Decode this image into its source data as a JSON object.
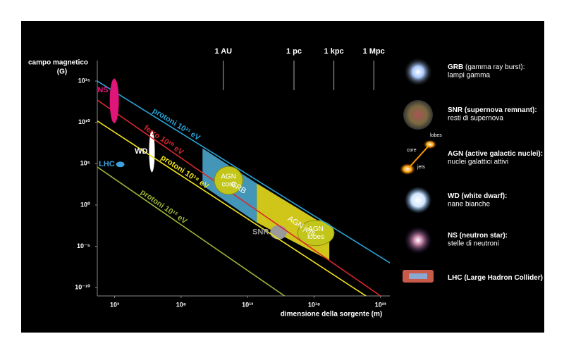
{
  "chart_data": {
    "type": "line",
    "y_label": "campo magnetico",
    "y_unit": "(G)",
    "x_label": "dimensione della sorgente (m)",
    "xscale": "log",
    "yscale": "log",
    "xlim": [
      50,
      5e+23
    ],
    "ylim": [
      1e-11,
      3e+17
    ],
    "xticks": [
      {
        "value": 1000.0,
        "label": "10³"
      },
      {
        "value": 100000000.0,
        "label": "10⁸"
      },
      {
        "value": 10000000000000.0,
        "label": "10¹³"
      },
      {
        "value": 1e+18,
        "label": "10¹⁸"
      },
      {
        "value": 1e+23,
        "label": "10²³"
      }
    ],
    "yticks": [
      {
        "value": 1000000000000000.0,
        "label": "10¹⁵"
      },
      {
        "value": 10000000000.0,
        "label": "10¹⁰"
      },
      {
        "value": 100000.0,
        "label": "10⁵"
      },
      {
        "value": 1,
        "label": "10⁰"
      },
      {
        "value": 1e-05,
        "label": "10⁻⁵"
      },
      {
        "value": 1e-10,
        "label": "10⁻¹⁰"
      }
    ],
    "x2ticks": [
      {
        "value": 150000000000.0,
        "label": "1 AU"
      },
      {
        "value": 3.09e+16,
        "label": "1 pc"
      },
      {
        "value": 3.09e+19,
        "label": "1 kpc"
      },
      {
        "value": 3.09e+22,
        "label": "1 Mpc"
      }
    ],
    "series": [
      {
        "name": "protoni 10²¹ eV",
        "color": "#2aa3d8",
        "x": [
          50,
          5e+23
        ],
        "values": [
          1000000000000000.0,
          1e-07
        ]
      },
      {
        "name": "ferro 10²⁰ eV",
        "color": "#d8272c",
        "x": [
          50,
          1e+23
        ],
        "values": [
          5000000000000.0,
          1e-11
        ]
      },
      {
        "name": "protoni 10¹⁸ eV",
        "color": "#f0e21b",
        "x": [
          50,
          8e+21
        ],
        "values": [
          15000000000.0,
          1e-11
        ]
      },
      {
        "name": "protoni 10¹² eV",
        "color": "#9cb53a",
        "x": [
          50,
          6000000000000000.0
        ],
        "values": [
          40000.0,
          1e-11
        ]
      }
    ],
    "regions": [
      {
        "shape": "polygon",
        "label": [
          "GRB"
        ],
        "color": "#4aa6cc",
        "x": [
          4100000000.0,
          49000000000000.0,
          49000000000000.0,
          4100000000.0
        ],
        "y": [
          7300000.0,
          420,
          0.0076,
          236
        ]
      },
      {
        "shape": "polygon",
        "label": [
          "AGN jets"
        ],
        "color": "#e6dc1c",
        "x": [
          49000000000000.0,
          1.4e+19,
          1.4e+19,
          49000000000000.0
        ],
        "y": [
          420,
          0.0019,
          2e-07,
          0.0076
        ]
      },
      {
        "shape": "circle",
        "label": [
          "AGN",
          "core"
        ],
        "color": "#c3c61a",
        "x": [
          32000000000.0,
          4300000000000.0
        ],
        "y": [
          19,
          46000.0
        ]
      },
      {
        "shape": "circle",
        "label": [
          "AGN",
          "lobes"
        ],
        "color": "#c3c61a",
        "x": [
          5.8e+16,
          3.2e+19
        ],
        "y": [
          1.2e-05,
          0.014
        ]
      },
      {
        "shape": "ellipse",
        "label": [
          "NS"
        ],
        "color": "#e0157a",
        "x": [
          430,
          2100
        ],
        "y": [
          8000000000.0,
          2000000000000000.0
        ]
      },
      {
        "shape": "ellipse",
        "label": [
          "WD"
        ],
        "color": "#ffffff",
        "x": [
          390000.0,
          1050000.0
        ],
        "y": [
          9500.0,
          950000000.0
        ]
      },
      {
        "shape": "ellipse",
        "label": [
          "LHC"
        ],
        "color": "#3aa0de",
        "x": [
          1300.0,
          5500.0
        ],
        "y": [
          38000.0,
          180000.0
        ]
      },
      {
        "shape": "ellipse",
        "label": [
          "SNR"
        ],
        "color": "#9a9a9a",
        "x": [
          500000000000000.0,
          9000000000000000.0
        ],
        "y": [
          7e-05,
          0.0035
        ]
      }
    ]
  },
  "legend": [
    {
      "bold": "GRB",
      "normal": " (gamma ray burst):",
      "line2": "lampi gamma"
    },
    {
      "bold": "SNR (supernova remnant):",
      "normal": "",
      "line2": "resti di supernova"
    },
    {
      "bold": "AGN (active galactic nuclei):",
      "normal": "",
      "line2": "nuclei galattici attivi",
      "icon_labels": [
        "lobes",
        "core",
        "jets"
      ]
    },
    {
      "bold": "WD (white dwarf):",
      "normal": "",
      "line2": "nane bianche"
    },
    {
      "bold": "NS (neutron star):",
      "normal": "",
      "line2": "stelle di neutroni"
    },
    {
      "bold": "LHC (Large Hadron Collider)",
      "normal": "",
      "line2": ""
    }
  ]
}
